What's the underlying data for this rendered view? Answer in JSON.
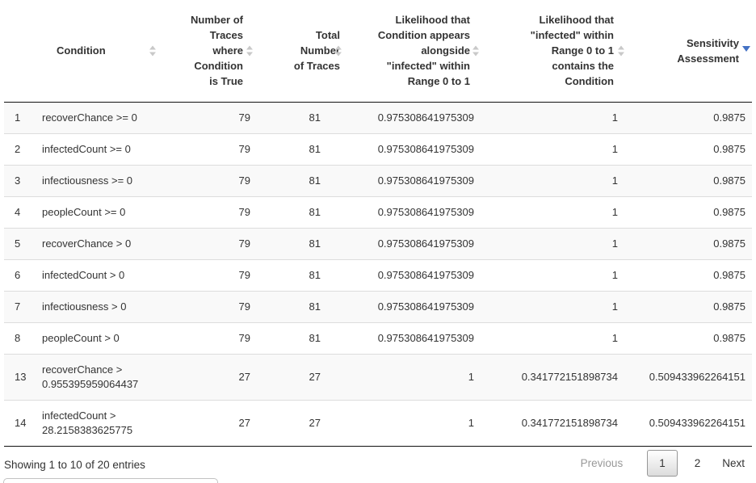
{
  "colors": {
    "sort_active_arrow": "#4472c4",
    "sort_inactive_arrow": "#c9c9c9",
    "stripe_row": "#f9f9f9",
    "dark_border": "#111111",
    "light_border": "#dddddd",
    "disabled_text": "#999999"
  },
  "table": {
    "headers": [
      {
        "label": "",
        "sortable": false
      },
      {
        "label": "Condition",
        "sortable": true,
        "sorted": "none"
      },
      {
        "label": "Number of Traces where Condition is True",
        "sortable": true,
        "sorted": "none"
      },
      {
        "label": "Total Number of Traces",
        "sortable": true,
        "sorted": "none"
      },
      {
        "label": "Likelihood that Condition appears alongside \"infected\" within Range 0 to 1",
        "sortable": true,
        "sorted": "none"
      },
      {
        "label": "Likelihood that \"infected\" within Range 0 to 1 contains the Condition",
        "sortable": true,
        "sorted": "none"
      },
      {
        "label": "Sensitivity Assessment",
        "sortable": true,
        "sorted": "desc"
      }
    ],
    "rows": [
      [
        "1",
        "recoverChance >= 0",
        "79",
        "81",
        "0.975308641975309",
        "1",
        "0.9875"
      ],
      [
        "2",
        "infectedCount >= 0",
        "79",
        "81",
        "0.975308641975309",
        "1",
        "0.9875"
      ],
      [
        "3",
        "infectiousness >= 0",
        "79",
        "81",
        "0.975308641975309",
        "1",
        "0.9875"
      ],
      [
        "4",
        "peopleCount >= 0",
        "79",
        "81",
        "0.975308641975309",
        "1",
        "0.9875"
      ],
      [
        "5",
        "recoverChance > 0",
        "79",
        "81",
        "0.975308641975309",
        "1",
        "0.9875"
      ],
      [
        "6",
        "infectedCount > 0",
        "79",
        "81",
        "0.975308641975309",
        "1",
        "0.9875"
      ],
      [
        "7",
        "infectiousness > 0",
        "79",
        "81",
        "0.975308641975309",
        "1",
        "0.9875"
      ],
      [
        "8",
        "peopleCount > 0",
        "79",
        "81",
        "0.975308641975309",
        "1",
        "0.9875"
      ],
      [
        "13",
        "recoverChance > 0.955395959064437",
        "27",
        "27",
        "1",
        "0.341772151898734",
        "0.509433962264151"
      ],
      [
        "14",
        "infectedCount > 28.2158383625775",
        "27",
        "27",
        "1",
        "0.341772151898734",
        "0.509433962264151"
      ]
    ]
  },
  "footer": {
    "info": "Showing 1 to 10 of 20 entries",
    "pagination": {
      "previous_label": "Previous",
      "pages": [
        "1",
        "2"
      ],
      "current_page": "1",
      "next_label": "Next"
    }
  }
}
